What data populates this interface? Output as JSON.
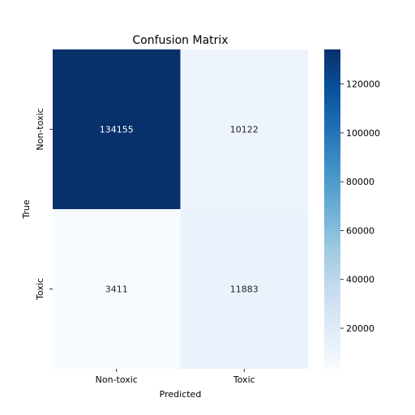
{
  "chart_data": {
    "type": "heatmap",
    "title": "Confusion Matrix",
    "xlabel": "Predicted",
    "ylabel": "True",
    "x_categories": [
      "Non-toxic",
      "Toxic"
    ],
    "y_categories": [
      "Non-toxic",
      "Toxic"
    ],
    "matrix": [
      [
        134155,
        10122
      ],
      [
        3411,
        11883
      ]
    ],
    "cell_labels": [
      [
        "134155",
        "10122"
      ],
      [
        "3411",
        "11883"
      ]
    ],
    "colormap": "Blues",
    "color_range": [
      3411,
      134155
    ],
    "colorbar_ticks": [
      20000,
      40000,
      60000,
      80000,
      100000,
      120000
    ],
    "colorbar_tick_labels": [
      "20000",
      "40000",
      "60000",
      "80000",
      "100000",
      "120000"
    ],
    "grid": false
  }
}
